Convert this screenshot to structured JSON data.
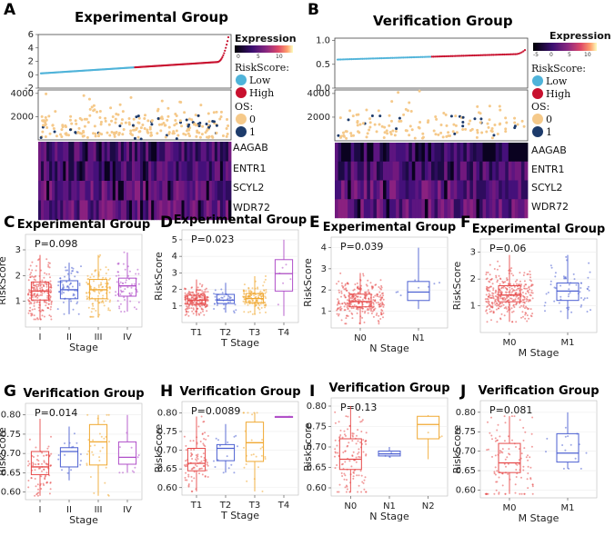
{
  "panels_top": [
    {
      "letter": "A",
      "title": "Experimental Group",
      "legend": {
        "expression_title": "Expression",
        "expression_ticks": [
          "0",
          "5",
          "10"
        ],
        "riskscore_title": "RiskScore:",
        "riskscore_items": [
          {
            "label": "Low",
            "color": "#4fb3d9"
          },
          {
            "label": "High",
            "color": "#c8102e"
          }
        ],
        "os_title": "OS:",
        "os_items": [
          {
            "label": "0",
            "color": "#f5c98a"
          },
          {
            "label": "1",
            "color": "#1d3b6b"
          }
        ]
      },
      "genes": [
        "AAGAB",
        "ENTR1",
        "SCYL2",
        "WDR72"
      ]
    },
    {
      "letter": "B",
      "title": "Verification Group",
      "legend": {
        "expression_title": "Expression",
        "expression_ticks": [
          "-5",
          "0",
          "5",
          "10"
        ],
        "riskscore_title": "RiskScore:",
        "riskscore_items": [
          {
            "label": "Low",
            "color": "#4fb3d9"
          },
          {
            "label": "High",
            "color": "#c8102e"
          }
        ],
        "os_title": "OS:",
        "os_items": [
          {
            "label": "0",
            "color": "#f5c98a"
          },
          {
            "label": "1",
            "color": "#1d3b6b"
          }
        ]
      },
      "genes": [
        "AAGAB",
        "ENTR1",
        "SCYL2",
        "WDR72"
      ]
    }
  ],
  "chart_data": [
    {
      "id": "A-risk",
      "type": "scatter",
      "title": "Experimental Group",
      "ylabel": "",
      "yticks": [
        -2,
        0,
        2,
        4,
        6
      ],
      "ylim": [
        -2,
        6
      ],
      "cutoff_fraction": 0.5,
      "low_color": "#4fb3d9",
      "high_color": "#c8102e",
      "range": [
        0.2,
        5.6
      ]
    },
    {
      "id": "A-os",
      "type": "scatter",
      "yticks": [
        2000,
        4000
      ],
      "ylim": [
        0,
        4300
      ],
      "legend": [
        "0",
        "1"
      ]
    },
    {
      "id": "B-risk",
      "type": "scatter",
      "title": "Verification Group",
      "yticks": [
        0.0,
        0.5,
        1.0
      ],
      "ylim": [
        0,
        1.05
      ],
      "cutoff_fraction": 0.5,
      "low_color": "#4fb3d9",
      "high_color": "#c8102e",
      "range": [
        0.58,
        0.8
      ]
    },
    {
      "id": "B-os",
      "type": "scatter",
      "yticks": [
        2000,
        4000
      ],
      "ylim": [
        0,
        4300
      ],
      "legend": [
        "0",
        "1"
      ]
    }
  ],
  "box_panels": [
    {
      "letter": "C",
      "title": "Experimental Group",
      "pvalue": "P=0.098",
      "xlabel": "Stage",
      "ylabel": "RiskScore",
      "categories": [
        "I",
        "II",
        "III",
        "IV"
      ],
      "colors": [
        "#e64a4a",
        "#4b5fd1",
        "#f0a830",
        "#b04fc8"
      ],
      "yticks": [
        1,
        2,
        3
      ],
      "ylim": [
        0,
        3.6
      ],
      "boxes": [
        {
          "min": 0.3,
          "q1": 1.05,
          "median": 1.4,
          "q3": 1.75,
          "max": 2.8
        },
        {
          "min": 0.5,
          "q1": 1.1,
          "median": 1.45,
          "q3": 1.8,
          "max": 2.5
        },
        {
          "min": 0.4,
          "q1": 1.1,
          "median": 1.45,
          "q3": 1.85,
          "max": 2.8
        },
        {
          "min": 0.6,
          "q1": 1.2,
          "median": 1.6,
          "q3": 1.9,
          "max": 2.9
        }
      ],
      "n": [
        200,
        60,
        110,
        60
      ]
    },
    {
      "letter": "D",
      "title": "Experimental Group",
      "pvalue": "P=0.023",
      "xlabel": "T Stage",
      "ylabel": "RiskScore",
      "categories": [
        "T1",
        "T2",
        "T3",
        "T4"
      ],
      "colors": [
        "#e64a4a",
        "#4b5fd1",
        "#f0a830",
        "#b04fc8"
      ],
      "yticks": [
        1,
        2,
        3,
        4,
        5
      ],
      "ylim": [
        0,
        5.6
      ],
      "boxes": [
        {
          "min": 0.4,
          "q1": 1.1,
          "median": 1.35,
          "q3": 1.65,
          "max": 2.6
        },
        {
          "min": 0.6,
          "q1": 1.15,
          "median": 1.35,
          "q3": 1.7,
          "max": 2.4
        },
        {
          "min": 0.5,
          "q1": 1.2,
          "median": 1.45,
          "q3": 1.75,
          "max": 2.8
        },
        {
          "min": 0.4,
          "q1": 1.9,
          "median": 2.95,
          "q3": 3.8,
          "max": 5.0
        }
      ],
      "n": [
        200,
        40,
        140,
        6
      ]
    },
    {
      "letter": "E",
      "title": "Experimental Group",
      "pvalue": "P=0.039",
      "xlabel": "N Stage",
      "ylabel": "RiskScore",
      "categories": [
        "N0",
        "N1"
      ],
      "colors": [
        "#e64a4a",
        "#4b5fd1"
      ],
      "yticks": [
        1,
        2,
        3,
        4
      ],
      "ylim": [
        0.2,
        4.5
      ],
      "boxes": [
        {
          "min": 0.4,
          "q1": 1.2,
          "median": 1.45,
          "q3": 1.8,
          "max": 2.8
        },
        {
          "min": 1.1,
          "q1": 1.5,
          "median": 1.9,
          "q3": 2.4,
          "max": 4.0
        }
      ],
      "n": [
        300,
        8
      ]
    },
    {
      "letter": "F",
      "title": "Experimental Group",
      "pvalue": "P=0.06",
      "xlabel": "M Stage",
      "ylabel": "RiskScore",
      "categories": [
        "M0",
        "M1"
      ],
      "colors": [
        "#e64a4a",
        "#4b5fd1"
      ],
      "yticks": [
        1,
        2,
        3
      ],
      "ylim": [
        0,
        3.5
      ],
      "boxes": [
        {
          "min": 0.4,
          "q1": 1.15,
          "median": 1.4,
          "q3": 1.75,
          "max": 2.9
        },
        {
          "min": 0.5,
          "q1": 1.2,
          "median": 1.55,
          "q3": 1.85,
          "max": 2.9
        }
      ],
      "n": [
        340,
        60
      ]
    },
    {
      "letter": "G",
      "title": "Verification Group",
      "pvalue": "P=0.014",
      "xlabel": "Stage",
      "ylabel": "RiskScore",
      "categories": [
        "I",
        "II",
        "III",
        "IV"
      ],
      "colors": [
        "#e64a4a",
        "#4b5fd1",
        "#f0a830",
        "#b04fc8"
      ],
      "yticks": [
        0.6,
        0.65,
        0.7,
        0.75,
        0.8
      ],
      "ylim": [
        0.58,
        0.83
      ],
      "boxes": [
        {
          "min": 0.59,
          "q1": 0.645,
          "median": 0.665,
          "q3": 0.705,
          "max": 0.79
        },
        {
          "min": 0.63,
          "q1": 0.665,
          "median": 0.705,
          "q3": 0.715,
          "max": 0.77
        },
        {
          "min": 0.59,
          "q1": 0.67,
          "median": 0.73,
          "q3": 0.775,
          "max": 0.8
        },
        {
          "min": 0.65,
          "q1": 0.672,
          "median": 0.69,
          "q3": 0.73,
          "max": 0.8
        }
      ],
      "n": [
        80,
        15,
        30,
        10
      ]
    },
    {
      "letter": "H",
      "title": "Verification Group",
      "pvalue": "P=0.0089",
      "xlabel": "T Stage",
      "ylabel": "RiskScore",
      "categories": [
        "T1",
        "T2",
        "T3",
        "T4"
      ],
      "colors": [
        "#e64a4a",
        "#4b5fd1",
        "#f0a830",
        "#b04fc8"
      ],
      "yticks": [
        0.6,
        0.65,
        0.7,
        0.75,
        0.8
      ],
      "ylim": [
        0.58,
        0.83
      ],
      "boxes": [
        {
          "min": 0.59,
          "q1": 0.645,
          "median": 0.665,
          "q3": 0.705,
          "max": 0.79
        },
        {
          "min": 0.64,
          "q1": 0.672,
          "median": 0.705,
          "q3": 0.715,
          "max": 0.77
        },
        {
          "min": 0.59,
          "q1": 0.67,
          "median": 0.72,
          "q3": 0.775,
          "max": 0.8
        },
        {
          "min": 0.79,
          "q1": 0.79,
          "median": 0.79,
          "q3": 0.79,
          "max": 0.79
        }
      ],
      "n": [
        90,
        15,
        25,
        1
      ]
    },
    {
      "letter": "I",
      "title": "Verification Group",
      "pvalue": "P=0.13",
      "xlabel": "N Stage",
      "ylabel": "RiskScore",
      "categories": [
        "N0",
        "N1",
        "N2"
      ],
      "colors": [
        "#e64a4a",
        "#4b5fd1",
        "#f0a830"
      ],
      "yticks": [
        0.6,
        0.65,
        0.7,
        0.75,
        0.8
      ],
      "ylim": [
        0.58,
        0.82
      ],
      "boxes": [
        {
          "min": 0.59,
          "q1": 0.645,
          "median": 0.67,
          "q3": 0.72,
          "max": 0.8
        },
        {
          "min": 0.675,
          "q1": 0.678,
          "median": 0.683,
          "q3": 0.69,
          "max": 0.7
        },
        {
          "min": 0.67,
          "q1": 0.72,
          "median": 0.755,
          "q3": 0.775,
          "max": 0.778
        }
      ],
      "n": [
        120,
        3,
        3
      ]
    },
    {
      "letter": "J",
      "title": "Verification Group",
      "pvalue": "P=0.081",
      "xlabel": "M Stage",
      "ylabel": "RiskScore",
      "categories": [
        "M0",
        "M1"
      ],
      "colors": [
        "#e64a4a",
        "#4b5fd1"
      ],
      "yticks": [
        0.6,
        0.65,
        0.7,
        0.75,
        0.8
      ],
      "ylim": [
        0.58,
        0.83
      ],
      "boxes": [
        {
          "min": 0.59,
          "q1": 0.645,
          "median": 0.67,
          "q3": 0.72,
          "max": 0.79
        },
        {
          "min": 0.655,
          "q1": 0.672,
          "median": 0.695,
          "q3": 0.745,
          "max": 0.8
        }
      ],
      "n": [
        110,
        15
      ]
    }
  ]
}
